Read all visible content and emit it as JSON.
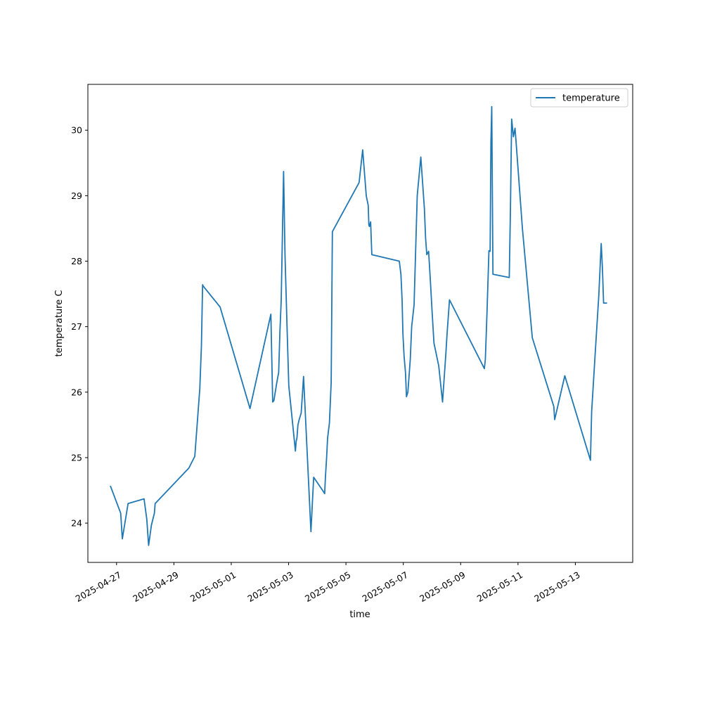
{
  "chart_data": {
    "type": "line",
    "title": "",
    "xlabel": "time",
    "ylabel": "temperature C",
    "x_type": "date",
    "xlim": [
      "2025-04-26T00:00:00",
      "2025-05-14T23:59:59"
    ],
    "ylim": [
      23.4,
      30.7
    ],
    "x_ticks": [
      "2025-04-27",
      "2025-04-29",
      "2025-05-01",
      "2025-05-03",
      "2025-05-05",
      "2025-05-07",
      "2025-05-09",
      "2025-05-11",
      "2025-05-13"
    ],
    "y_ticks": [
      24,
      25,
      26,
      27,
      28,
      29,
      30
    ],
    "grid": false,
    "legend": {
      "position": "top-right"
    },
    "colors": {
      "line": "#1f77b4",
      "axes": "#000000",
      "legend_border": "#cccccc"
    },
    "series": [
      {
        "name": "temperature",
        "x": [
          "2025-04-26T19:00",
          "2025-04-27T03:30",
          "2025-04-27T04:50",
          "2025-04-27T09:40",
          "2025-04-27T23:00",
          "2025-04-28T01:20",
          "2025-04-28T02:50",
          "2025-04-28T05:10",
          "2025-04-28T07:40",
          "2025-04-28T08:20",
          "2025-04-29T12:30",
          "2025-04-29T17:30",
          "2025-04-29T21:40",
          "2025-04-29T23:00",
          "2025-04-30T00:00",
          "2025-04-30T00:30",
          "2025-04-30T14:40",
          "2025-05-01T15:40",
          "2025-05-02T09:10",
          "2025-05-02T10:40",
          "2025-05-02T11:40",
          "2025-05-02T14:10",
          "2025-05-02T15:40",
          "2025-05-02T16:40",
          "2025-05-02T17:50",
          "2025-05-02T19:50",
          "2025-05-02T21:00",
          "2025-05-02T22:40",
          "2025-05-03T00:10",
          "2025-05-03T05:40",
          "2025-05-03T06:20",
          "2025-05-03T07:00",
          "2025-05-03T07:50",
          "2025-05-03T08:40",
          "2025-05-03T10:30",
          "2025-05-03T11:20",
          "2025-05-03T12:30",
          "2025-05-03T18:40",
          "2025-05-03T21:00",
          "2025-05-04T05:30",
          "2025-05-04T06:10",
          "2025-05-04T06:50",
          "2025-05-04T07:50",
          "2025-05-04T08:40",
          "2025-05-04T10:10",
          "2025-05-04T11:40",
          "2025-05-04T12:40",
          "2025-05-05T11:00",
          "2025-05-05T14:00",
          "2025-05-05T17:00",
          "2025-05-05T18:40",
          "2025-05-05T19:10",
          "2025-05-05T19:40",
          "2025-05-05T20:40",
          "2025-05-05T21:40",
          "2025-05-06T20:40",
          "2025-05-06T22:00",
          "2025-05-06T23:00",
          "2025-05-06T23:40",
          "2025-05-07T00:40",
          "2025-05-07T01:50",
          "2025-05-07T02:40",
          "2025-05-07T03:50",
          "2025-05-07T05:50",
          "2025-05-07T07:00",
          "2025-05-07T09:00",
          "2025-05-07T11:40",
          "2025-05-07T14:40",
          "2025-05-07T17:40",
          "2025-05-07T18:40",
          "2025-05-07T19:40",
          "2025-05-07T21:10",
          "2025-05-07T22:40",
          "2025-05-08T00:10",
          "2025-05-08T01:40",
          "2025-05-08T05:40",
          "2025-05-08T08:50",
          "2025-05-08T11:40",
          "2025-05-08T12:40",
          "2025-05-08T14:40",
          "2025-05-09T19:50",
          "2025-05-09T20:40",
          "2025-05-09T22:00",
          "2025-05-09T23:40",
          "2025-05-10T00:40",
          "2025-05-10T01:20",
          "2025-05-10T02:00",
          "2025-05-10T03:00",
          "2025-05-10T16:40",
          "2025-05-10T17:40",
          "2025-05-10T18:40",
          "2025-05-10T20:10",
          "2025-05-10T21:30",
          "2025-05-10T22:40",
          "2025-05-10T23:40",
          "2025-05-11T03:40",
          "2025-05-11T12:00",
          "2025-05-12T06:00",
          "2025-05-12T06:40",
          "2025-05-12T15:10",
          "2025-05-13T12:40",
          "2025-05-13T13:40",
          "2025-05-13T16:40",
          "2025-05-13T19:40",
          "2025-05-13T21:40",
          "2025-05-13T22:40",
          "2025-05-13T23:40",
          "2025-05-14T02:00"
        ],
        "values": [
          24.56,
          24.15,
          23.76,
          24.3,
          24.37,
          24.06,
          23.66,
          23.97,
          24.15,
          24.3,
          24.84,
          25.02,
          26.05,
          26.7,
          27.64,
          27.62,
          27.3,
          25.75,
          27.19,
          25.85,
          25.87,
          26.15,
          26.3,
          26.9,
          27.4,
          29.37,
          28.1,
          27.0,
          26.1,
          25.1,
          25.25,
          25.3,
          25.5,
          25.57,
          25.68,
          25.9,
          26.24,
          23.87,
          24.7,
          24.47,
          24.45,
          24.7,
          25.0,
          25.3,
          25.53,
          26.15,
          28.45,
          29.2,
          29.7,
          29.0,
          28.85,
          28.55,
          28.53,
          28.6,
          28.1,
          28.0,
          27.8,
          27.4,
          26.9,
          26.55,
          26.3,
          25.93,
          26.0,
          26.5,
          27.0,
          27.33,
          29.0,
          29.59,
          28.8,
          28.35,
          28.1,
          28.15,
          27.7,
          27.2,
          26.75,
          26.4,
          25.85,
          26.6,
          26.9,
          27.41,
          26.36,
          26.5,
          27.2,
          28.16,
          28.15,
          29.8,
          30.36,
          27.8,
          27.75,
          28.8,
          30.17,
          29.9,
          30.03,
          29.75,
          29.5,
          28.5,
          26.83,
          25.78,
          25.58,
          26.25,
          24.96,
          25.7,
          26.6,
          27.48,
          28.27,
          27.9,
          27.36,
          27.36
        ]
      }
    ]
  }
}
